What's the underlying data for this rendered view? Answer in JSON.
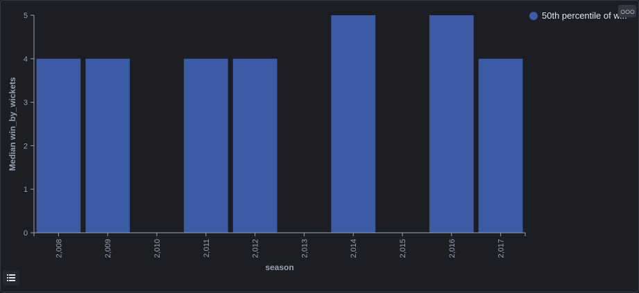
{
  "legend": {
    "label": "50th percentile of w...",
    "color": "#3b5ba5"
  },
  "options_icon": "ellipsis-icon",
  "legend_toggle_icon": "list-icon",
  "chart_data": {
    "type": "bar",
    "categories": [
      "2,008",
      "2,009",
      "2,010",
      "2,011",
      "2,012",
      "2,013",
      "2,014",
      "2,015",
      "2,016",
      "2,017"
    ],
    "series": [
      {
        "name": "50th percentile of w...",
        "values": [
          4,
          4,
          null,
          4,
          4,
          null,
          5,
          null,
          5,
          4
        ],
        "color": "#3b5ba5"
      }
    ],
    "xlabel": "season",
    "ylabel": "Median win_by_wickets",
    "ylim": [
      0,
      5
    ],
    "yticks": [
      0,
      1,
      2,
      3,
      4,
      5
    ],
    "grid": false,
    "legend_position": "top-right"
  }
}
